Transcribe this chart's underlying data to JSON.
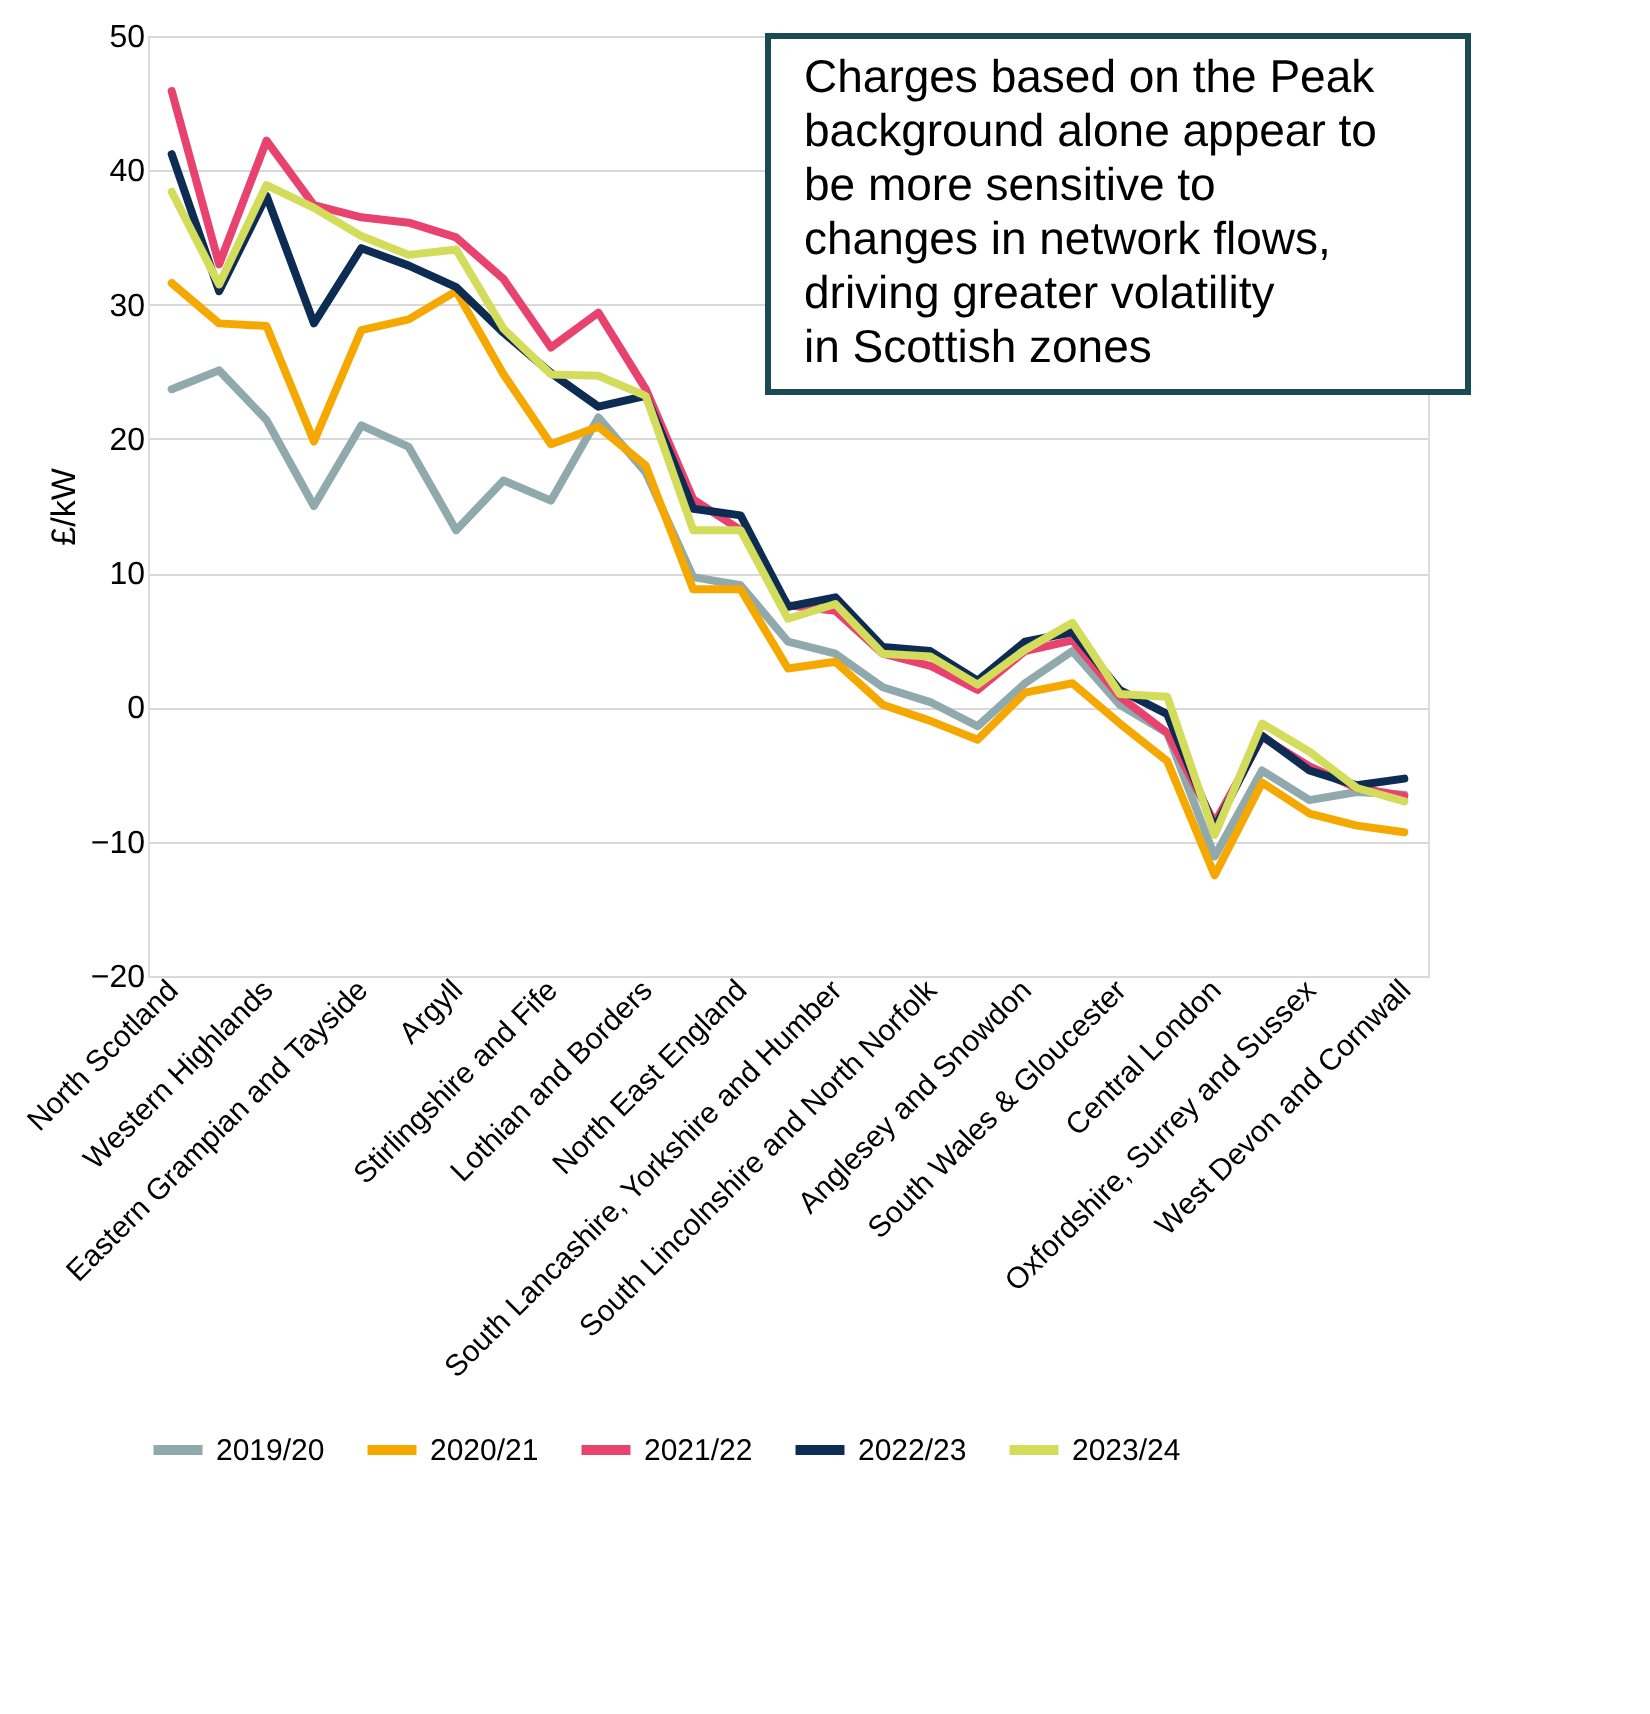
{
  "chart_data": {
    "type": "line",
    "ylabel": "£/kW",
    "categories": [
      "North Scotland",
      null,
      "Western Highlands",
      null,
      "Eastern Grampian and Tayside",
      null,
      "Argyll",
      null,
      "Stirlingshire and Fife",
      null,
      "Lothian and Borders",
      null,
      "North East England",
      null,
      "South Lancashire, Yorkshire and Humber",
      null,
      "South Lincolnshire and North Norfolk",
      null,
      "Anglesey and Snowdon",
      null,
      "South Wales & Gloucester",
      null,
      "Central London",
      null,
      "Oxfordshire, Surrey and Sussex",
      null,
      "West Devon and Cornwall"
    ],
    "series": [
      {
        "name": "2019/20",
        "color": "#8fa9ad",
        "values": [
          23.7,
          25.1,
          21.4,
          15.0,
          21.0,
          19.4,
          13.2,
          16.9,
          15.4,
          21.6,
          17.5,
          9.7,
          9.1,
          4.9,
          4.0,
          1.5,
          0.4,
          -1.4,
          1.8,
          4.2,
          0.2,
          -1.9,
          -11.1,
          -4.7,
          -6.9,
          -6.3,
          -6.5
        ]
      },
      {
        "name": "2020/21",
        "color": "#f5a800",
        "values": [
          31.6,
          28.6,
          28.4,
          19.8,
          28.1,
          28.9,
          31.0,
          24.8,
          19.6,
          20.9,
          18.0,
          8.8,
          8.8,
          2.9,
          3.4,
          0.2,
          -1.0,
          -2.4,
          1.1,
          1.8,
          -1.2,
          -4.0,
          -12.5,
          -5.6,
          -7.9,
          -8.8,
          -9.3
        ]
      },
      {
        "name": "2021/22",
        "color": "#e8426f",
        "values": [
          45.9,
          33.0,
          42.2,
          37.4,
          36.5,
          36.1,
          35.0,
          31.9,
          26.8,
          29.4,
          23.7,
          15.5,
          13.2,
          7.6,
          7.2,
          4.0,
          3.1,
          1.3,
          4.2,
          5.0,
          0.8,
          -1.9,
          -8.6,
          -2.2,
          -4.4,
          -6.0,
          -6.6
        ]
      },
      {
        "name": "2022/23",
        "color": "#0d2c54",
        "values": [
          41.2,
          31.0,
          38.1,
          28.6,
          34.2,
          32.9,
          31.3,
          27.9,
          24.9,
          22.4,
          23.2,
          14.8,
          14.3,
          7.5,
          8.2,
          4.5,
          4.2,
          2.0,
          4.9,
          5.6,
          1.3,
          -0.5,
          -9.0,
          -2.1,
          -4.7,
          -5.8,
          -5.3
        ]
      },
      {
        "name": "2023/24",
        "color": "#d4dc5c",
        "values": [
          38.4,
          31.5,
          38.9,
          37.2,
          35.1,
          33.7,
          34.1,
          28.2,
          24.8,
          24.7,
          23.2,
          13.2,
          13.2,
          6.6,
          7.7,
          4.0,
          3.8,
          1.7,
          4.3,
          6.3,
          1.0,
          0.8,
          -9.5,
          -1.2,
          -3.3,
          -6.0,
          -7.0
        ]
      }
    ],
    "ylim": [
      -20,
      50
    ],
    "yticks": [
      -20,
      -10,
      0,
      10,
      20,
      30,
      40,
      50
    ],
    "grid": "y",
    "legend": "bottom",
    "annotations": [
      "Charges based on the Peak background alone appear to be more sensitive to changes in network flows, driving greater volatility in Scottish zones"
    ]
  }
}
